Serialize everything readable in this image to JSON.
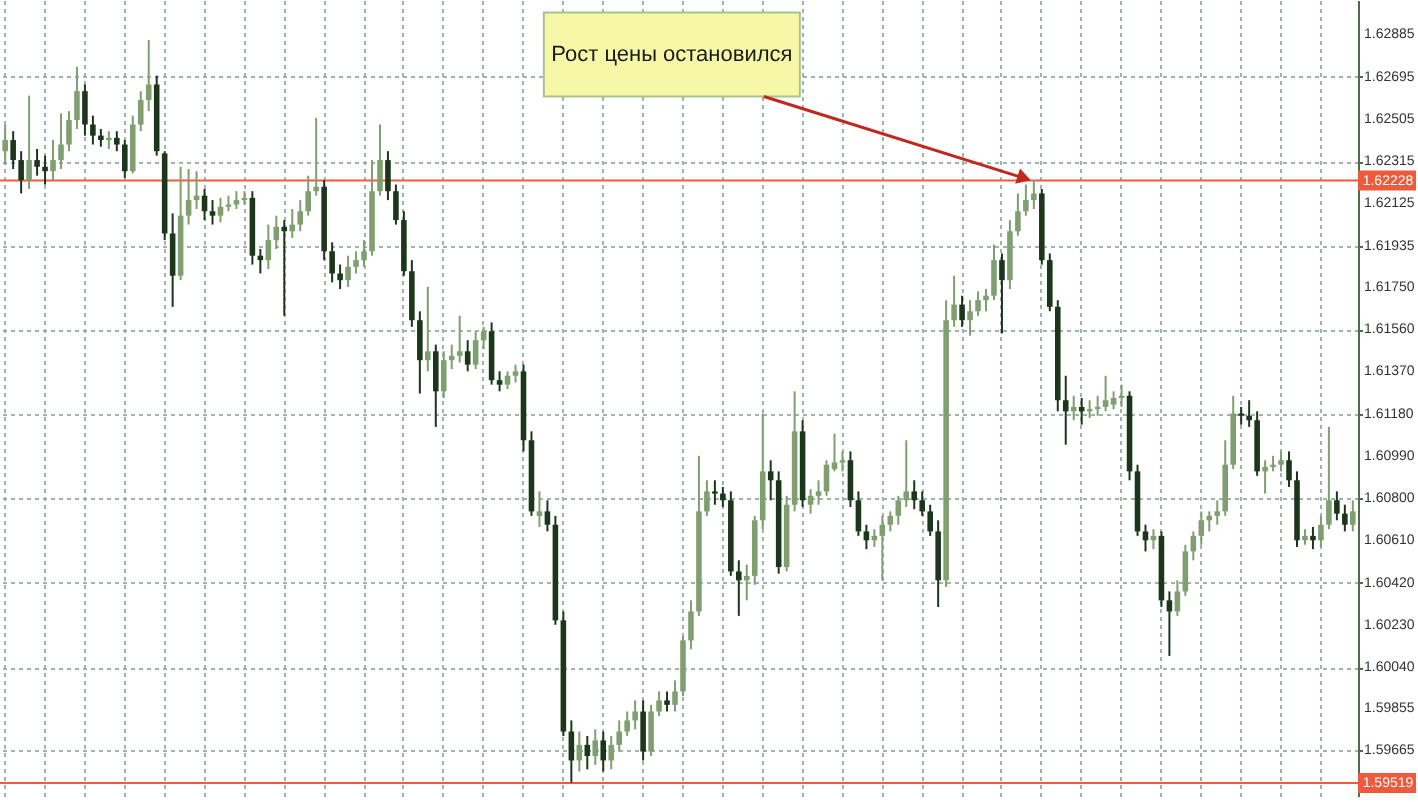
{
  "chart_data": {
    "type": "candlestick",
    "categories": [
      null,
      null,
      null,
      null,
      null,
      null,
      null,
      null,
      null,
      null,
      null,
      null,
      null,
      null,
      null,
      null,
      null,
      null,
      null,
      null,
      null,
      null,
      null,
      null,
      null,
      null,
      null,
      null,
      null,
      null,
      null,
      null,
      null,
      null,
      null,
      null,
      null,
      null,
      null,
      null,
      null,
      null,
      null,
      null,
      null,
      null,
      null,
      null,
      null,
      null,
      null,
      null,
      null,
      null,
      null,
      null,
      null,
      null,
      null,
      null,
      null,
      null,
      null,
      null,
      null,
      null,
      null,
      null,
      null,
      null,
      null,
      null,
      null,
      null,
      null,
      null,
      null,
      null,
      null,
      null,
      null,
      null,
      null,
      null,
      null,
      null,
      null,
      null,
      null,
      null,
      null,
      null,
      null,
      null,
      null,
      null,
      null,
      null,
      null,
      null,
      null,
      null,
      null,
      null,
      null,
      null,
      null,
      null,
      null,
      null,
      null,
      null,
      null,
      null,
      null,
      null,
      null,
      null,
      null,
      null,
      null,
      null,
      null,
      null,
      null,
      null,
      null,
      null,
      null,
      null,
      null,
      null,
      null,
      null,
      null,
      null,
      null,
      null,
      null,
      null,
      null,
      null,
      null,
      null,
      null,
      null,
      null,
      null,
      null,
      null,
      null,
      null,
      null,
      null,
      null,
      null,
      null,
      null,
      null,
      null,
      null,
      null,
      null,
      null,
      null,
      null,
      null,
      null,
      null,
      null
    ],
    "ohlc": [
      [
        1.6236,
        1.6248,
        1.623,
        1.6241
      ],
      [
        1.6241,
        1.6245,
        1.6228,
        1.6232
      ],
      [
        1.6232,
        1.6236,
        1.6217,
        1.6223
      ],
      [
        1.6223,
        1.6261,
        1.6219,
        1.6232
      ],
      [
        1.6232,
        1.6237,
        1.6225,
        1.6229
      ],
      [
        1.6229,
        1.6234,
        1.6221,
        1.6227
      ],
      [
        1.6227,
        1.6241,
        1.6223,
        1.6232
      ],
      [
        1.6232,
        1.6253,
        1.6228,
        1.6239
      ],
      [
        1.6239,
        1.6254,
        1.6236,
        1.625
      ],
      [
        1.625,
        1.6274,
        1.6246,
        1.6263
      ],
      [
        1.6263,
        1.6266,
        1.6243,
        1.6248
      ],
      [
        1.6248,
        1.6252,
        1.6239,
        1.6243
      ],
      [
        1.6243,
        1.6246,
        1.6238,
        1.6241
      ],
      [
        1.6241,
        1.6245,
        1.6237,
        1.6242
      ],
      [
        1.6242,
        1.6245,
        1.6236,
        1.6239
      ],
      [
        1.6239,
        1.6241,
        1.6224,
        1.6227
      ],
      [
        1.6227,
        1.6252,
        1.6226,
        1.6248
      ],
      [
        1.6248,
        1.6263,
        1.6245,
        1.6259
      ],
      [
        1.6259,
        1.6286,
        1.6254,
        1.6266
      ],
      [
        1.6266,
        1.627,
        1.6234,
        1.6236
      ],
      [
        1.6235,
        1.6236,
        1.6196,
        1.6199
      ],
      [
        1.6199,
        1.6208,
        1.6166,
        1.618
      ],
      [
        1.618,
        1.6229,
        1.6178,
        1.6207
      ],
      [
        1.6207,
        1.6228,
        1.6203,
        1.6214
      ],
      [
        1.6214,
        1.6227,
        1.621,
        1.6216
      ],
      [
        1.6216,
        1.6219,
        1.6205,
        1.6209
      ],
      [
        1.6209,
        1.6214,
        1.6203,
        1.6207
      ],
      [
        1.6207,
        1.6215,
        1.6204,
        1.6211
      ],
      [
        1.6211,
        1.6216,
        1.6209,
        1.6212
      ],
      [
        1.6212,
        1.6218,
        1.621,
        1.6214
      ],
      [
        1.6214,
        1.6218,
        1.6212,
        1.6215
      ],
      [
        1.6215,
        1.6218,
        1.6185,
        1.6189
      ],
      [
        1.6189,
        1.6192,
        1.6181,
        1.6187
      ],
      [
        1.6187,
        1.6203,
        1.6183,
        1.6196
      ],
      [
        1.6196,
        1.6207,
        1.6192,
        1.6202
      ],
      [
        1.6202,
        1.6205,
        1.6162,
        1.62
      ],
      [
        1.62,
        1.621,
        1.6197,
        1.6203
      ],
      [
        1.6203,
        1.6214,
        1.62,
        1.6209
      ],
      [
        1.6209,
        1.6225,
        1.6207,
        1.6218
      ],
      [
        1.6218,
        1.6251,
        1.6216,
        1.622
      ],
      [
        1.622,
        1.6223,
        1.6187,
        1.6191
      ],
      [
        1.6191,
        1.6195,
        1.6177,
        1.6181
      ],
      [
        1.6181,
        1.6185,
        1.6174,
        1.6178
      ],
      [
        1.6178,
        1.6189,
        1.6175,
        1.6184
      ],
      [
        1.6184,
        1.6191,
        1.6181,
        1.6187
      ],
      [
        1.6187,
        1.6196,
        1.6184,
        1.6191
      ],
      [
        1.6191,
        1.6232,
        1.6189,
        1.6218
      ],
      [
        1.6218,
        1.6248,
        1.6216,
        1.6232
      ],
      [
        1.6232,
        1.6236,
        1.6214,
        1.6218
      ],
      [
        1.6218,
        1.6221,
        1.6203,
        1.6205
      ],
      [
        1.6205,
        1.6209,
        1.618,
        1.6182
      ],
      [
        1.6182,
        1.6187,
        1.6157,
        1.616
      ],
      [
        1.616,
        1.6164,
        1.6127,
        1.6142
      ],
      [
        1.6142,
        1.6175,
        1.6137,
        1.6146
      ],
      [
        1.6146,
        1.6149,
        1.6112,
        1.6128
      ],
      [
        1.6128,
        1.6146,
        1.6125,
        1.6142
      ],
      [
        1.6142,
        1.6149,
        1.6138,
        1.6144
      ],
      [
        1.6144,
        1.6162,
        1.6141,
        1.6146
      ],
      [
        1.6146,
        1.6151,
        1.6137,
        1.614
      ],
      [
        1.614,
        1.6155,
        1.6138,
        1.6151
      ],
      [
        1.6151,
        1.6157,
        1.6147,
        1.6155
      ],
      [
        1.6155,
        1.6159,
        1.6131,
        1.6133
      ],
      [
        1.6133,
        1.6137,
        1.6128,
        1.6131
      ],
      [
        1.6131,
        1.6137,
        1.6129,
        1.6135
      ],
      [
        1.6135,
        1.614,
        1.6132,
        1.6137
      ],
      [
        1.6137,
        1.614,
        1.6101,
        1.6106
      ],
      [
        1.6106,
        1.611,
        1.6072,
        1.6074
      ],
      [
        1.6072,
        1.6083,
        1.6067,
        1.6074
      ],
      [
        1.6074,
        1.6079,
        1.6065,
        1.6068
      ],
      [
        1.6068,
        1.6072,
        1.6023,
        1.6025
      ],
      [
        1.6025,
        1.6029,
        1.5973,
        1.5975
      ],
      [
        1.5975,
        1.598,
        1.5952,
        1.5962
      ],
      [
        1.5962,
        1.5975,
        1.5957,
        1.5969
      ],
      [
        1.5969,
        1.5973,
        1.5958,
        1.5964
      ],
      [
        1.5964,
        1.5976,
        1.596,
        1.5971
      ],
      [
        1.5971,
        1.5975,
        1.5957,
        1.5962
      ],
      [
        1.5962,
        1.5973,
        1.5958,
        1.5969
      ],
      [
        1.5969,
        1.598,
        1.5966,
        1.5975
      ],
      [
        1.5975,
        1.5984,
        1.5973,
        1.598
      ],
      [
        1.598,
        1.5989,
        1.5976,
        1.5984
      ],
      [
        1.5984,
        1.5989,
        1.5962,
        1.5966
      ],
      [
        1.5966,
        1.5987,
        1.5964,
        1.5984
      ],
      [
        1.5984,
        1.5993,
        1.5982,
        1.5989
      ],
      [
        1.5989,
        1.5993,
        1.5984,
        1.5987
      ],
      [
        1.5987,
        1.5998,
        1.5984,
        1.5993
      ],
      [
        1.5993,
        1.6018,
        1.5991,
        1.6016
      ],
      [
        1.6016,
        1.6034,
        1.6012,
        1.6029
      ],
      [
        1.6029,
        1.6099,
        1.6027,
        1.6074
      ],
      [
        1.6074,
        1.6088,
        1.6072,
        1.6083
      ],
      [
        1.6083,
        1.6088,
        1.6077,
        1.6082
      ],
      [
        1.6082,
        1.6085,
        1.6076,
        1.6079
      ],
      [
        1.6079,
        1.6083,
        1.6045,
        1.6047
      ],
      [
        1.6047,
        1.6052,
        1.6027,
        1.6043
      ],
      [
        1.6043,
        1.605,
        1.6034,
        1.6045
      ],
      [
        1.6045,
        1.6072,
        1.6041,
        1.607
      ],
      [
        1.607,
        1.6118,
        1.6066,
        1.6092
      ],
      [
        1.6092,
        1.6097,
        1.6079,
        1.6088
      ],
      [
        1.6088,
        1.6092,
        1.6046,
        1.6049
      ],
      [
        1.6049,
        1.6081,
        1.6047,
        1.6077
      ],
      [
        1.6077,
        1.6128,
        1.6074,
        1.611
      ],
      [
        1.611,
        1.6115,
        1.6076,
        1.6079
      ],
      [
        1.6077,
        1.6084,
        1.6073,
        1.6081
      ],
      [
        1.6081,
        1.6088,
        1.6077,
        1.6083
      ],
      [
        1.6083,
        1.6097,
        1.6081,
        1.6095
      ],
      [
        1.6093,
        1.6109,
        1.6092,
        1.6096
      ],
      [
        1.6096,
        1.6101,
        1.6092,
        1.6097
      ],
      [
        1.6097,
        1.6101,
        1.6076,
        1.6079
      ],
      [
        1.6079,
        1.6083,
        1.6063,
        1.6065
      ],
      [
        1.6065,
        1.6068,
        1.6057,
        1.6061
      ],
      [
        1.6061,
        1.6066,
        1.6058,
        1.6063
      ],
      [
        1.6063,
        1.6072,
        1.6043,
        1.6068
      ],
      [
        1.6068,
        1.6074,
        1.6065,
        1.6072
      ],
      [
        1.6072,
        1.6081,
        1.6068,
        1.6079
      ],
      [
        1.6079,
        1.6106,
        1.6076,
        1.6083
      ],
      [
        1.6083,
        1.6088,
        1.6075,
        1.6079
      ],
      [
        1.6079,
        1.6083,
        1.6072,
        1.6074
      ],
      [
        1.6074,
        1.6077,
        1.6063,
        1.6065
      ],
      [
        1.6065,
        1.607,
        1.6031,
        1.6043
      ],
      [
        1.6043,
        1.6169,
        1.604,
        1.616
      ],
      [
        1.616,
        1.618,
        1.6157,
        1.6167
      ],
      [
        1.6167,
        1.6171,
        1.6157,
        1.616
      ],
      [
        1.616,
        1.6169,
        1.6153,
        1.6164
      ],
      [
        1.6164,
        1.6173,
        1.6162,
        1.6169
      ],
      [
        1.6169,
        1.6174,
        1.6164,
        1.6171
      ],
      [
        1.6171,
        1.6194,
        1.6169,
        1.6187
      ],
      [
        1.6187,
        1.619,
        1.6154,
        1.6178
      ],
      [
        1.6178,
        1.6205,
        1.6174,
        1.62
      ],
      [
        1.62,
        1.6217,
        1.6198,
        1.6209
      ],
      [
        1.6209,
        1.6221,
        1.6207,
        1.6214
      ],
      [
        1.6214,
        1.6223,
        1.621,
        1.6217
      ],
      [
        1.6217,
        1.6219,
        1.6185,
        1.6187
      ],
      [
        1.6187,
        1.619,
        1.6164,
        1.6166
      ],
      [
        1.6166,
        1.6169,
        1.6119,
        1.6124
      ],
      [
        1.6124,
        1.6135,
        1.6104,
        1.6119
      ],
      [
        1.6119,
        1.6126,
        1.6115,
        1.6121
      ],
      [
        1.6121,
        1.6125,
        1.6113,
        1.6119
      ],
      [
        1.6119,
        1.6124,
        1.6116,
        1.612
      ],
      [
        1.612,
        1.6126,
        1.6117,
        1.6121
      ],
      [
        1.6121,
        1.6135,
        1.6119,
        1.6124
      ],
      [
        1.6122,
        1.6128,
        1.612,
        1.6125
      ],
      [
        1.6125,
        1.6131,
        1.6121,
        1.6126
      ],
      [
        1.6126,
        1.6128,
        1.6088,
        1.6092
      ],
      [
        1.6092,
        1.6095,
        1.6063,
        1.6065
      ],
      [
        1.6065,
        1.6068,
        1.6056,
        1.6061
      ],
      [
        1.6061,
        1.6066,
        1.6057,
        1.6063
      ],
      [
        1.6063,
        1.6065,
        1.6031,
        1.6034
      ],
      [
        1.6034,
        1.6038,
        1.6009,
        1.6029
      ],
      [
        1.6029,
        1.6043,
        1.6027,
        1.6038
      ],
      [
        1.6038,
        1.6059,
        1.6036,
        1.6056
      ],
      [
        1.6056,
        1.6065,
        1.6052,
        1.6063
      ],
      [
        1.6063,
        1.6074,
        1.6059,
        1.607
      ],
      [
        1.607,
        1.6074,
        1.6065,
        1.6072
      ],
      [
        1.6072,
        1.6079,
        1.6068,
        1.6074
      ],
      [
        1.6074,
        1.6106,
        1.6072,
        1.6095
      ],
      [
        1.6095,
        1.6126,
        1.6093,
        1.6118
      ],
      [
        1.6118,
        1.6121,
        1.6113,
        1.6117
      ],
      [
        1.6117,
        1.6124,
        1.6112,
        1.6115
      ],
      [
        1.6115,
        1.6119,
        1.609,
        1.6092
      ],
      [
        1.6092,
        1.6097,
        1.6082,
        1.6094
      ],
      [
        1.6094,
        1.6099,
        1.6092,
        1.6095
      ],
      [
        1.6095,
        1.6101,
        1.6092,
        1.6097
      ],
      [
        1.6097,
        1.6101,
        1.6085,
        1.6088
      ],
      [
        1.6088,
        1.6092,
        1.6058,
        1.6061
      ],
      [
        1.6061,
        1.6066,
        1.6059,
        1.6063
      ],
      [
        1.6063,
        1.6067,
        1.6057,
        1.6061
      ],
      [
        1.6061,
        1.6072,
        1.6058,
        1.6068
      ],
      [
        1.6068,
        1.6112,
        1.6066,
        1.6079
      ],
      [
        1.6079,
        1.6083,
        1.607,
        1.6073
      ],
      [
        1.6073,
        1.6077,
        1.6065,
        1.6068
      ],
      [
        1.6068,
        1.6079,
        1.6065,
        1.6074
      ]
    ],
    "colors": [
      "#7f9f70",
      "#1c361c",
      "#1c361c",
      "#7f9f70",
      "#1c361c",
      "#1c361c",
      "#7f9f70",
      "#7f9f70",
      "#7f9f70",
      "#7f9f70",
      "#1c361c",
      "#1c361c",
      "#1c361c",
      "#7f9f70",
      "#1c361c",
      "#1c361c",
      "#7f9f70",
      "#7f9f70",
      "#7f9f70",
      "#1c361c",
      "#1c361c",
      "#1c361c",
      "#7f9f70",
      "#7f9f70",
      "#7f9f70",
      "#1c361c",
      "#1c361c",
      "#7f9f70",
      "#7f9f70",
      "#7f9f70",
      "#7f9f70",
      "#1c361c",
      "#1c361c",
      "#7f9f70",
      "#7f9f70",
      "#1c361c",
      "#7f9f70",
      "#7f9f70",
      "#7f9f70",
      "#7f9f70",
      "#1c361c",
      "#1c361c",
      "#1c361c",
      "#7f9f70",
      "#7f9f70",
      "#7f9f70",
      "#7f9f70",
      "#7f9f70",
      "#1c361c",
      "#1c361c",
      "#1c361c",
      "#1c361c",
      "#1c361c",
      "#7f9f70",
      "#1c361c",
      "#7f9f70",
      "#7f9f70",
      "#7f9f70",
      "#1c361c",
      "#7f9f70",
      "#7f9f70",
      "#1c361c",
      "#1c361c",
      "#7f9f70",
      "#7f9f70",
      "#1c361c",
      "#1c361c",
      "#7f9f70",
      "#1c361c",
      "#1c361c",
      "#1c361c",
      "#1c361c",
      "#7f9f70",
      "#1c361c",
      "#7f9f70",
      "#1c361c",
      "#7f9f70",
      "#7f9f70",
      "#7f9f70",
      "#7f9f70",
      "#1c361c",
      "#7f9f70",
      "#7f9f70",
      "#1c361c",
      "#7f9f70",
      "#7f9f70",
      "#7f9f70",
      "#7f9f70",
      "#7f9f70",
      "#1c361c",
      "#1c361c",
      "#1c361c",
      "#1c361c",
      "#7f9f70",
      "#7f9f70",
      "#7f9f70",
      "#1c361c",
      "#1c361c",
      "#7f9f70",
      "#7f9f70",
      "#1c361c",
      "#7f9f70",
      "#7f9f70",
      "#7f9f70",
      "#7f9f70",
      "#7f9f70",
      "#1c361c",
      "#1c361c",
      "#1c361c",
      "#7f9f70",
      "#7f9f70",
      "#7f9f70",
      "#7f9f70",
      "#7f9f70",
      "#1c361c",
      "#1c361c",
      "#1c361c",
      "#1c361c",
      "#7f9f70",
      "#7f9f70",
      "#1c361c",
      "#7f9f70",
      "#7f9f70",
      "#7f9f70",
      "#7f9f70",
      "#1c361c",
      "#7f9f70",
      "#7f9f70",
      "#7f9f70",
      "#7f9f70",
      "#1c361c",
      "#1c361c",
      "#1c361c",
      "#1c361c",
      "#7f9f70",
      "#1c361c",
      "#7f9f70",
      "#7f9f70",
      "#7f9f70",
      "#7f9f70",
      "#7f9f70",
      "#1c361c",
      "#1c361c",
      "#1c361c",
      "#7f9f70",
      "#1c361c",
      "#1c361c",
      "#7f9f70",
      "#7f9f70",
      "#7f9f70",
      "#7f9f70",
      "#7f9f70",
      "#7f9f70",
      "#7f9f70",
      "#7f9f70",
      "#1c361c",
      "#1c361c",
      "#1c361c",
      "#7f9f70",
      "#7f9f70",
      "#7f9f70",
      "#1c361c",
      "#1c361c",
      "#7f9f70",
      "#1c361c",
      "#7f9f70",
      "#7f9f70",
      "#1c361c",
      "#1c361c",
      "#7f9f70"
    ],
    "ylim": [
      1.5946,
      1.6304
    ],
    "yticks": [
      1.62885,
      1.62695,
      1.62505,
      1.62315,
      1.62125,
      1.61935,
      {
        "value": 1.6175,
        "label": "1.61750"
      },
      {
        "value": 1.6156,
        "label": "1.61560"
      },
      {
        "value": 1.6137,
        "label": "1.61370"
      },
      {
        "value": 1.6118,
        "label": "1.61180"
      },
      {
        "value": 1.6099,
        "label": "1.60990"
      },
      {
        "value": 1.608,
        "label": "1.60800"
      },
      {
        "value": 1.6061,
        "label": "1.60610"
      },
      {
        "value": 1.6042,
        "label": "1.60420"
      },
      {
        "value": 1.6023,
        "label": "1.60230"
      },
      {
        "value": 1.6004,
        "label": "1.60040"
      },
      1.59855,
      1.59665
    ],
    "ref_lines": [
      {
        "axis": "y",
        "value": 1.62228,
        "label": "1.62228",
        "color": "#f05a3c"
      },
      {
        "axis": "y",
        "value": 1.59519,
        "label": "1.59519",
        "color": "#f05a3c"
      }
    ],
    "annotations": [
      "Рост цены остановился"
    ],
    "grid": true,
    "tick_labels": "y"
  }
}
